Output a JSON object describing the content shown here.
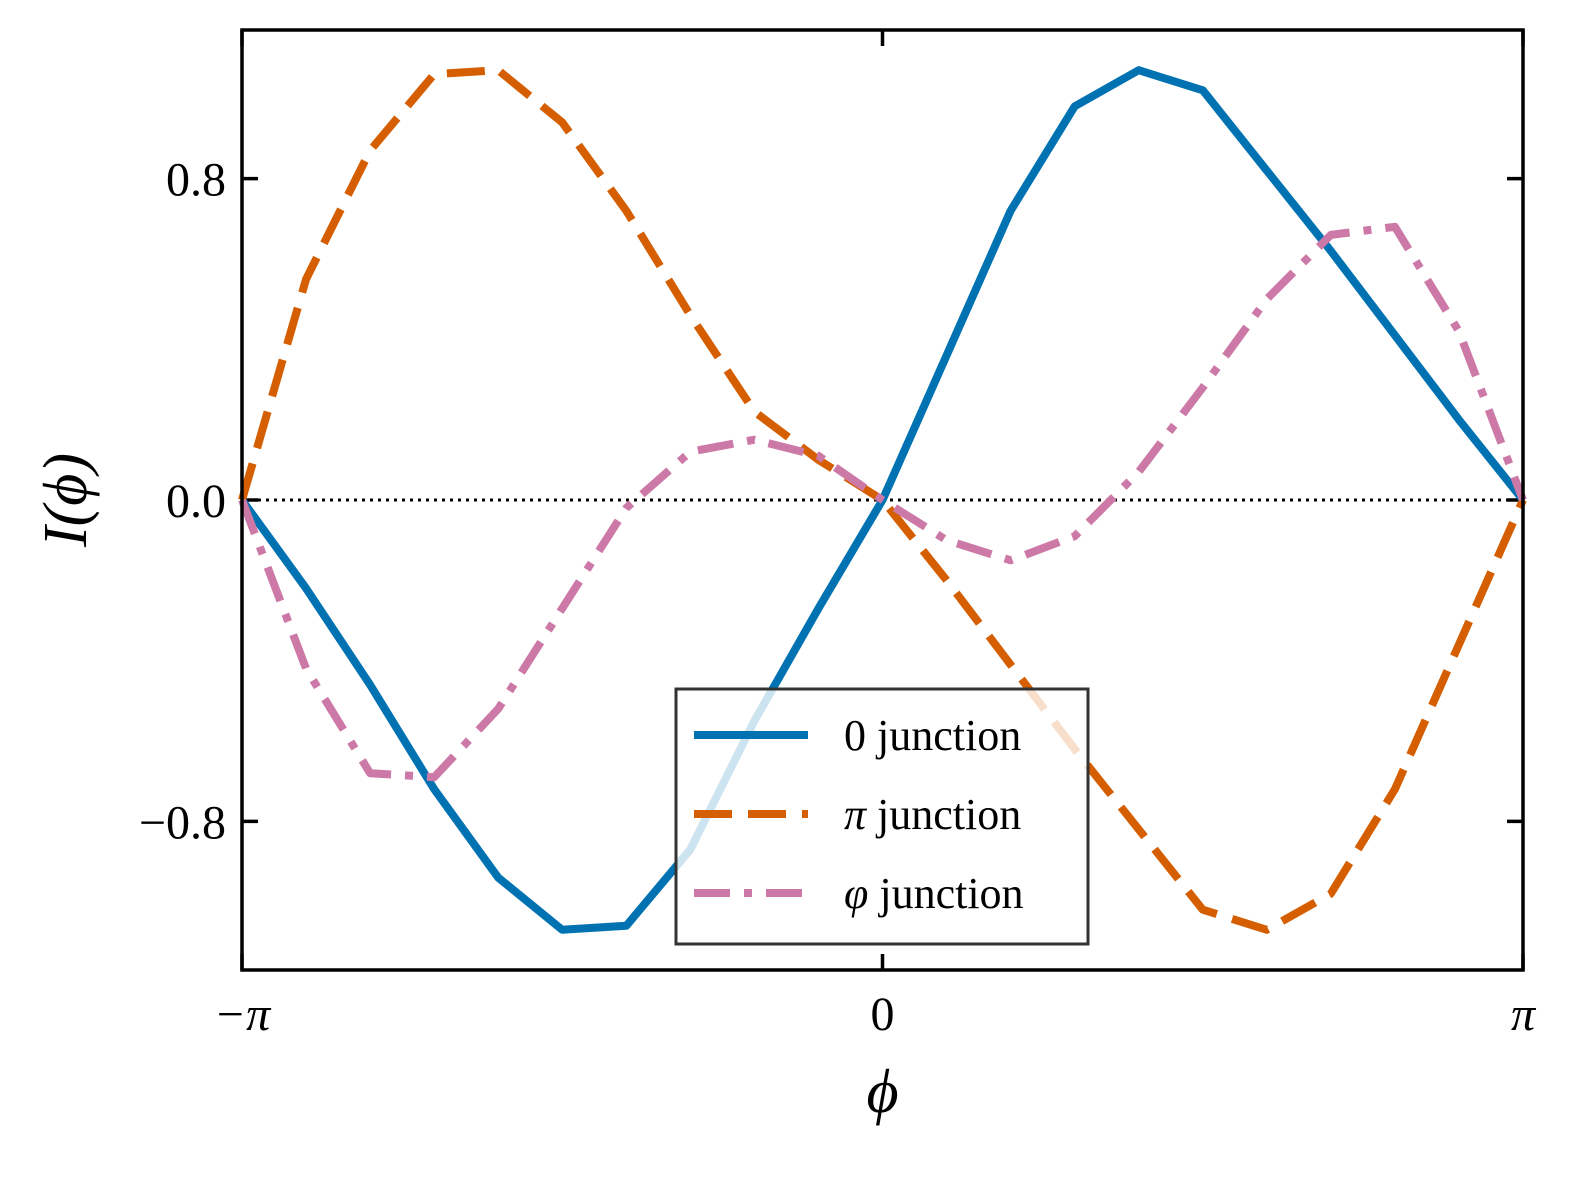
{
  "chart_data": {
    "type": "line",
    "xlabel": "ϕ",
    "ylabel": "I(ϕ)",
    "xlim": [
      -3.14159,
      3.14159
    ],
    "ylim": [
      -1.17,
      1.17
    ],
    "xticks": [
      {
        "value": -3.14159,
        "label": "−π"
      },
      {
        "value": 0,
        "label": "0"
      },
      {
        "value": 3.14159,
        "label": "π"
      }
    ],
    "yticks": [
      {
        "value": -0.8,
        "label": "−0.8"
      },
      {
        "value": 0.0,
        "label": "0.0"
      },
      {
        "value": 0.8,
        "label": "0.8"
      }
    ],
    "zero_line": {
      "y": 0,
      "style": "dotted"
    },
    "grid": false,
    "legend": {
      "placement": "lower-center"
    },
    "series": [
      {
        "name": "0 junction",
        "legend_prefix": "0",
        "legend_suffix": " junction",
        "color": "#0072B2",
        "style": "solid",
        "x": [
          -3.1416,
          -2.8274,
          -2.5133,
          -2.1991,
          -1.885,
          -1.5708,
          -1.2566,
          -0.9425,
          -0.6283,
          -0.3142,
          0.0,
          0.3142,
          0.6283,
          0.9425,
          1.2566,
          1.5708,
          1.885,
          2.1991,
          2.5133,
          2.8274,
          3.1416
        ],
        "y": [
          0.0,
          -0.22,
          -0.46,
          -0.72,
          -0.94,
          -1.07,
          -1.06,
          -0.87,
          -0.55,
          -0.27,
          0.0,
          0.36,
          0.72,
          0.98,
          1.07,
          1.02,
          0.82,
          0.62,
          0.41,
          0.2,
          0.0
        ]
      },
      {
        "name": "π junction",
        "legend_prefix": "π",
        "legend_suffix": " junction",
        "color": "#D55E00",
        "style": "dashed",
        "x": [
          -3.1416,
          -2.8274,
          -2.5133,
          -2.1991,
          -1.885,
          -1.5708,
          -1.2566,
          -0.9425,
          -0.6283,
          -0.3142,
          0.0,
          0.3142,
          0.6283,
          0.9425,
          1.2566,
          1.5708,
          1.885,
          2.1991,
          2.5133,
          2.8274,
          3.1416
        ],
        "y": [
          0.0,
          0.55,
          0.87,
          1.06,
          1.07,
          0.94,
          0.72,
          0.46,
          0.22,
          0.1,
          0.0,
          -0.2,
          -0.41,
          -0.62,
          -0.82,
          -1.02,
          -1.07,
          -0.98,
          -0.72,
          -0.36,
          0.0
        ]
      },
      {
        "name": "φ junction",
        "legend_prefix": "φ",
        "legend_suffix": " junction",
        "color": "#CC79A7",
        "style": "dashdot",
        "x": [
          -3.1416,
          -2.8274,
          -2.5133,
          -2.1991,
          -1.885,
          -1.5708,
          -1.2566,
          -0.9425,
          -0.6283,
          -0.3142,
          0.0,
          0.3142,
          0.6283,
          0.9425,
          1.2566,
          1.5708,
          1.885,
          2.1991,
          2.5133,
          2.8274,
          3.1416
        ],
        "y": [
          0.0,
          -0.42,
          -0.68,
          -0.69,
          -0.52,
          -0.27,
          -0.02,
          0.12,
          0.15,
          0.11,
          0.0,
          -0.1,
          -0.15,
          -0.09,
          0.07,
          0.28,
          0.5,
          0.66,
          0.68,
          0.42,
          0.0
        ]
      }
    ]
  }
}
